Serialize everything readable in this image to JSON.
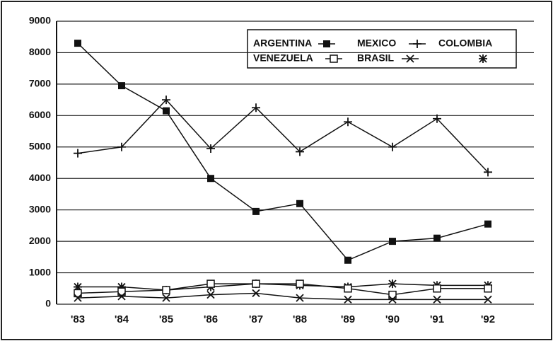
{
  "chart_data": {
    "type": "line",
    "categories": [
      "'83",
      "'84",
      "'85",
      "'86",
      "'87",
      "'88",
      "'89",
      "'90",
      "'91",
      "'92"
    ],
    "series": [
      {
        "name": "ARGENTINA",
        "color": "#111111",
        "marker": "filled-square",
        "values": [
          8300,
          6950,
          6150,
          4000,
          2950,
          3200,
          1400,
          2000,
          2100,
          2550
        ]
      },
      {
        "name": "MEXICO",
        "color": "#111111",
        "marker": "plus",
        "values": [
          4800,
          5000,
          6500,
          4950,
          6250,
          4850,
          5800,
          5000,
          5900,
          4200
        ]
      },
      {
        "name": "COLOMBIA",
        "color": "#111111",
        "marker": "asterisk",
        "values": [
          550,
          550,
          450,
          550,
          650,
          600,
          550,
          650,
          600,
          600
        ]
      },
      {
        "name": "VENEZUELA",
        "color": "#111111",
        "marker": "open-square",
        "values": [
          350,
          400,
          450,
          650,
          650,
          650,
          500,
          300,
          500,
          500
        ]
      },
      {
        "name": "BRASIL",
        "color": "#111111",
        "marker": "x",
        "values": [
          200,
          250,
          200,
          300,
          350,
          200,
          150,
          150,
          150,
          150
        ]
      }
    ],
    "ylim": [
      0,
      9000
    ],
    "yticks": [
      0,
      1000,
      2000,
      3000,
      4000,
      5000,
      6000,
      7000,
      8000,
      9000
    ],
    "grid": true
  }
}
